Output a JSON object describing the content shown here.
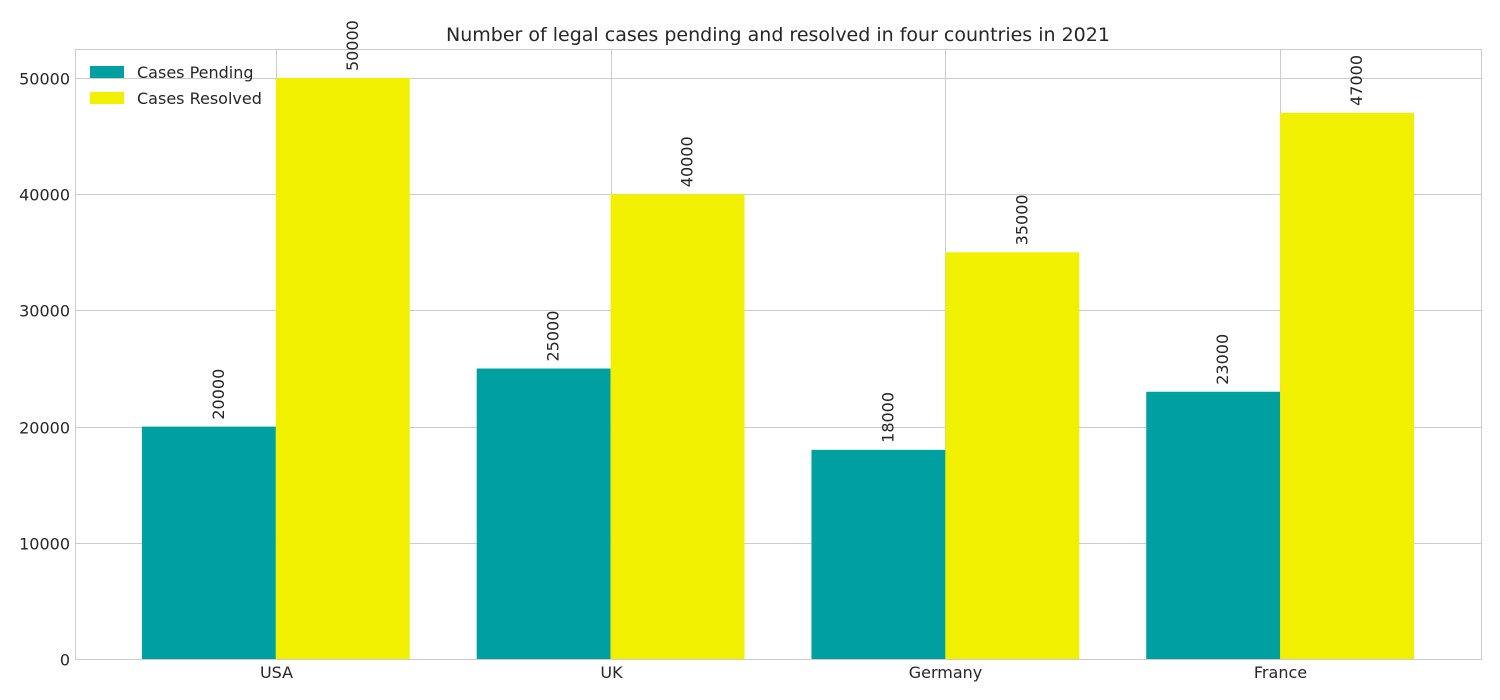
{
  "chart_data": {
    "type": "bar",
    "title": "Number of legal cases pending and resolved in four countries in 2021",
    "xlabel": "",
    "ylabel": "",
    "categories": [
      "USA",
      "UK",
      "Germany",
      "France"
    ],
    "series": [
      {
        "name": "Cases Pending",
        "values": [
          20000,
          25000,
          18000,
          23000
        ],
        "color": "#00a0a0"
      },
      {
        "name": "Cases Resolved",
        "values": [
          50000,
          40000,
          35000,
          47000
        ],
        "color": "#f0f000"
      }
    ],
    "ylim": [
      0,
      52500
    ],
    "yticks": [
      "0",
      "10000",
      "20000",
      "30000",
      "40000",
      "50000"
    ],
    "grid": true,
    "legend": "top-left",
    "data_labels": [
      "20000",
      "25000",
      "18000",
      "23000",
      "50000",
      "40000",
      "35000",
      "47000"
    ]
  }
}
